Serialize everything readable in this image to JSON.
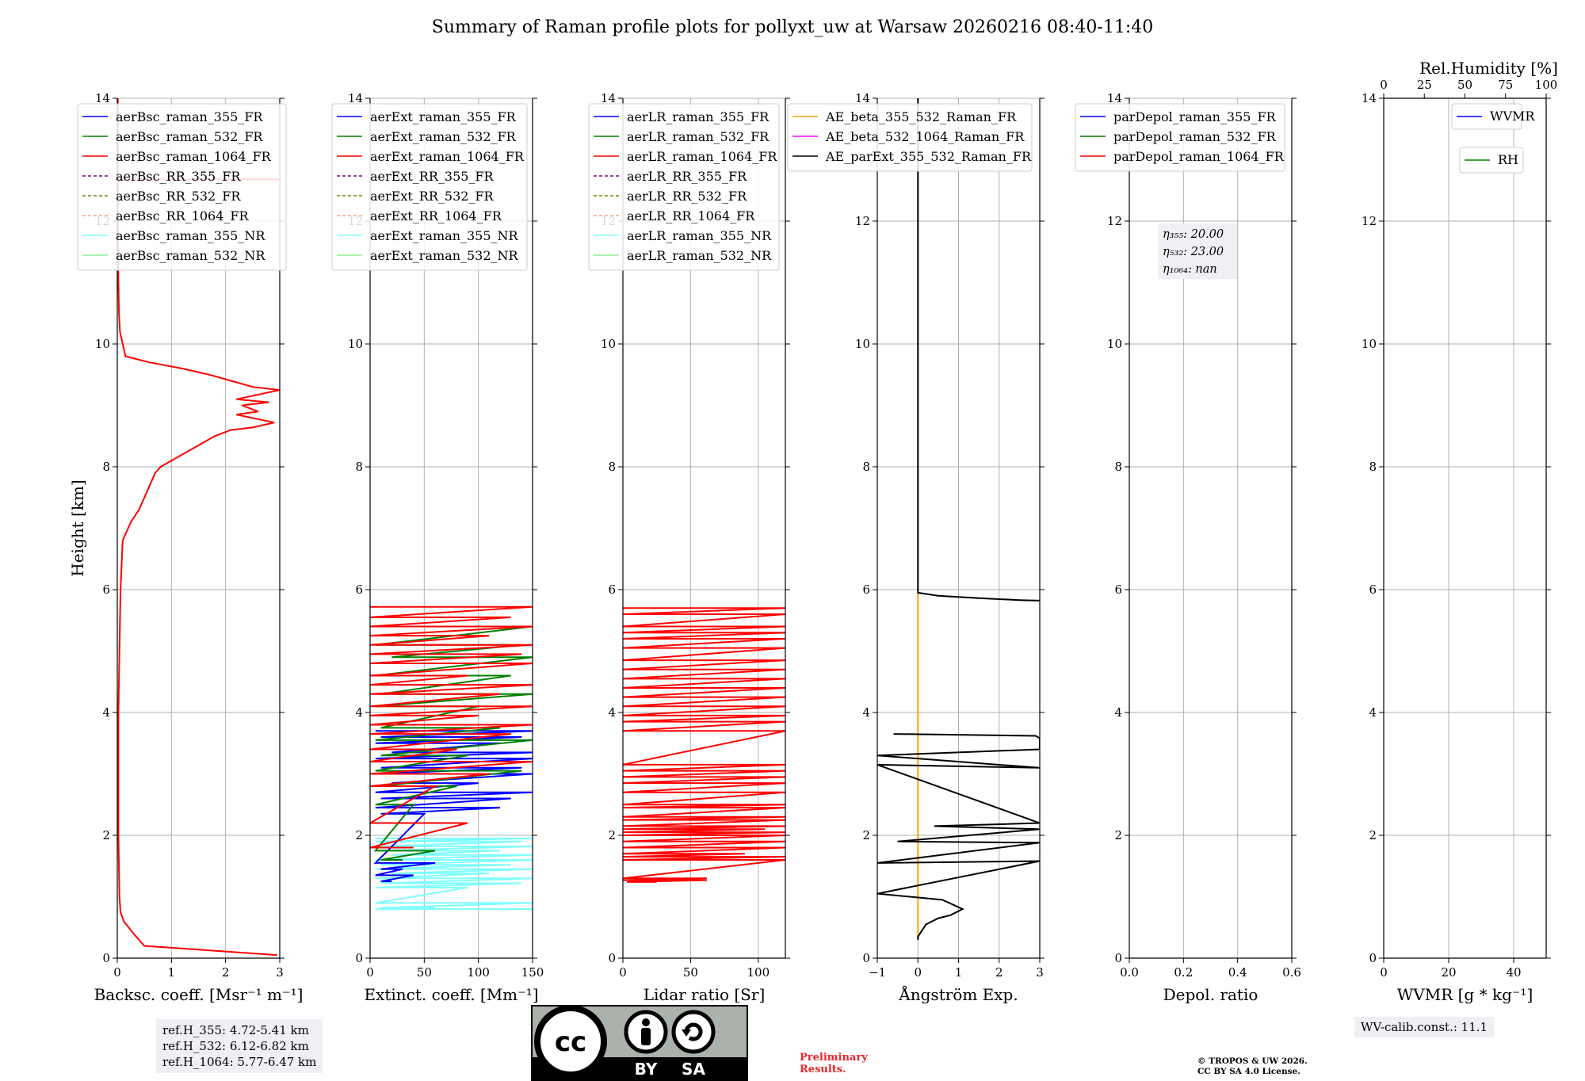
{
  "title": "Summary of Raman profile plots for pollyxt_uw at Warsaw 20260216 08:40-11:40",
  "colors": {
    "ch355": "#0000ff",
    "ch532": "#008000",
    "ch1064": "#ff0000",
    "rr355": "#800080",
    "rr532": "#808000",
    "rr1064": "#ffa07a",
    "nr355": "#7fffff",
    "nr532": "#90ee90",
    "ae_beta_355_532": "#ffa500",
    "ae_beta_532_1064": "#ff00ff",
    "ae_parext": "#000000",
    "grid": "#b0b0b0"
  },
  "chart_data": [
    {
      "id": "backscatter",
      "type": "line",
      "xlabel": "Backsc. coeff. [Msr⁻¹ m⁻¹]",
      "ylabel": "Height [km]",
      "xlim": [
        0,
        3
      ],
      "ylim": [
        0,
        14
      ],
      "xticks": [
        0,
        1,
        2,
        3
      ],
      "xticklabels": [
        "0",
        "1",
        "2",
        "3"
      ],
      "yticks": [
        0,
        2,
        4,
        6,
        8,
        10,
        12,
        14
      ],
      "legend": [
        "aerBsc_raman_355_FR",
        "aerBsc_raman_532_FR",
        "aerBsc_raman_1064_FR",
        "aerBsc_RR_355_FR",
        "aerBsc_RR_532_FR",
        "aerBsc_RR_1064_FR",
        "aerBsc_raman_355_NR",
        "aerBsc_raman_532_NR"
      ],
      "series": [
        {
          "name": "aerBsc_raman_1064_FR",
          "color": "#ff0000",
          "x": [
            2.95,
            0.5,
            0.3,
            0.12,
            0.06,
            0.04,
            0.02,
            0.02,
            0.02,
            0.04,
            0.06,
            0.1,
            0.25,
            0.4,
            0.5,
            0.6,
            0.7,
            0.8,
            1.0,
            1.2,
            1.4,
            1.6,
            1.8,
            2.1,
            2.3,
            2.5,
            2.9,
            2.2,
            2.6,
            2.3,
            2.8,
            2.2,
            3.0,
            2.5,
            2.1,
            1.7,
            1.2,
            0.6,
            0.15,
            0.05,
            0.03,
            0.02,
            0.01,
            0.01,
            0.01,
            0.01
          ],
          "y": [
            0.05,
            0.2,
            0.4,
            0.6,
            0.75,
            1.0,
            2.0,
            3.0,
            4.0,
            5.0,
            6.0,
            6.8,
            7.1,
            7.3,
            7.5,
            7.7,
            7.9,
            8.0,
            8.1,
            8.2,
            8.3,
            8.4,
            8.5,
            8.6,
            8.62,
            8.64,
            8.72,
            8.85,
            8.9,
            9.0,
            9.05,
            9.1,
            9.25,
            9.3,
            9.4,
            9.5,
            9.6,
            9.7,
            9.8,
            10.2,
            10.5,
            11.0,
            12.0,
            12.5,
            13.5,
            14.0
          ]
        },
        {
          "name": "aerBsc_raman_1064_FR_top",
          "color": "#ff0000",
          "x": [
            0.0,
            3.0
          ],
          "y": [
            12.68,
            12.68
          ]
        }
      ]
    },
    {
      "id": "extinction",
      "type": "line",
      "xlabel": "Extinct. coeff. [Mm⁻¹]",
      "ylabel": "",
      "xlim": [
        0,
        150
      ],
      "ylim": [
        0,
        14
      ],
      "xticks": [
        0,
        50,
        100,
        150
      ],
      "xticklabels": [
        "0",
        "50",
        "100",
        "150"
      ],
      "yticks": [
        0,
        2,
        4,
        6,
        8,
        10,
        12,
        14
      ],
      "legend": [
        "aerExt_raman_355_FR",
        "aerExt_raman_532_FR",
        "aerExt_raman_1064_FR",
        "aerExt_RR_355_FR",
        "aerExt_RR_532_FR",
        "aerExt_RR_1064_FR",
        "aerExt_raman_355_NR",
        "aerExt_raman_532_NR"
      ],
      "series": [
        {
          "name": "aerExt_raman_355_NR",
          "color": "#7fffff",
          "x": [
            5,
            150,
            5,
            140,
            10,
            150,
            5,
            120,
            20,
            150,
            5,
            150,
            10,
            130,
            5,
            150,
            20,
            110,
            5,
            150,
            10,
            140,
            5,
            90,
            5,
            150,
            10,
            60,
            5,
            150
          ],
          "y": [
            1.95,
            1.95,
            1.9,
            1.9,
            1.82,
            1.82,
            1.75,
            1.75,
            1.68,
            1.68,
            1.6,
            1.6,
            1.52,
            1.52,
            1.45,
            1.45,
            1.38,
            1.38,
            1.3,
            1.3,
            1.22,
            1.22,
            1.15,
            1.15,
            0.9,
            0.9,
            0.82,
            0.82,
            0.8,
            0.8
          ]
        },
        {
          "name": "aerExt_raman_355_FR",
          "color": "#0000ff",
          "x": [
            5,
            150,
            10,
            140,
            5,
            120,
            20,
            150,
            5,
            150,
            10,
            140,
            5,
            150,
            20,
            100,
            5,
            150,
            10,
            130,
            5,
            120,
            10,
            50,
            5,
            60,
            10,
            30,
            5,
            40,
            10,
            20
          ],
          "y": [
            3.7,
            3.7,
            3.6,
            3.6,
            3.5,
            3.5,
            3.35,
            3.35,
            3.25,
            3.25,
            3.1,
            3.1,
            3.0,
            3.0,
            2.85,
            2.85,
            2.7,
            2.7,
            2.6,
            2.6,
            2.45,
            2.45,
            2.35,
            2.35,
            1.55,
            1.55,
            1.45,
            1.45,
            1.35,
            1.35,
            1.25,
            1.25
          ]
        },
        {
          "name": "aerExt_raman_532_FR",
          "color": "#008000",
          "x": [
            10,
            150,
            5,
            140,
            20,
            150,
            5,
            130,
            10,
            150,
            5,
            100,
            10,
            120,
            5,
            150,
            10,
            90,
            5,
            140,
            10,
            80,
            5,
            40,
            5,
            60,
            10,
            30
          ],
          "y": [
            5.4,
            5.4,
            5.1,
            5.1,
            4.9,
            4.9,
            4.6,
            4.6,
            4.3,
            4.3,
            4.1,
            4.1,
            3.75,
            3.75,
            3.55,
            3.55,
            3.3,
            3.3,
            3.05,
            3.05,
            2.8,
            2.8,
            2.5,
            2.5,
            1.75,
            1.75,
            1.6,
            1.6
          ]
        },
        {
          "name": "aerExt_raman_1064_FR",
          "color": "#ff0000",
          "x": [
            0,
            150,
            0,
            130,
            0,
            150,
            0,
            110,
            0,
            150,
            0,
            140,
            0,
            150,
            0,
            90,
            0,
            150,
            0,
            120,
            0,
            150,
            0,
            100,
            0,
            150,
            0,
            130,
            0,
            80,
            0,
            150,
            0,
            110,
            0,
            60,
            0,
            90,
            0,
            40
          ],
          "y": [
            5.72,
            5.72,
            5.55,
            5.55,
            5.4,
            5.4,
            5.25,
            5.25,
            5.1,
            5.1,
            4.95,
            4.95,
            4.8,
            4.8,
            4.6,
            4.6,
            4.45,
            4.45,
            4.3,
            4.3,
            4.1,
            4.1,
            3.95,
            3.95,
            3.8,
            3.8,
            3.65,
            3.65,
            3.4,
            3.4,
            3.2,
            3.2,
            3.0,
            3.0,
            2.8,
            2.8,
            2.2,
            2.2,
            1.8,
            1.8
          ]
        }
      ]
    },
    {
      "id": "lidar_ratio",
      "type": "line",
      "xlabel": "Lidar ratio [Sr]",
      "ylabel": "",
      "xlim": [
        0,
        120
      ],
      "ylim": [
        0,
        14
      ],
      "xticks": [
        0,
        50,
        100
      ],
      "xticklabels": [
        "0",
        "50",
        "100"
      ],
      "yticks": [
        0,
        2,
        4,
        6,
        8,
        10,
        12,
        14
      ],
      "legend": [
        "aerLR_raman_355_FR",
        "aerLR_raman_532_FR",
        "aerLR_raman_1064_FR",
        "aerLR_RR_355_FR",
        "aerLR_RR_532_FR",
        "aerLR_RR_1064_FR",
        "aerLR_raman_355_NR",
        "aerLR_raman_532_NR"
      ],
      "series": [
        {
          "name": "aerLR_raman_1064_FR",
          "color": "#ff0000",
          "x": [
            0,
            120,
            0,
            120,
            0,
            120,
            0,
            120,
            0,
            120,
            0,
            120,
            0,
            120,
            0,
            120,
            0,
            120,
            0,
            120,
            0,
            120,
            0,
            120,
            0,
            120,
            0,
            120,
            0,
            120,
            0,
            120,
            0,
            120,
            0,
            120,
            0,
            120,
            0,
            120,
            0,
            120,
            0,
            120,
            0,
            120,
            0,
            120,
            0,
            120,
            0,
            105,
            0,
            120,
            0,
            120,
            0,
            120,
            0,
            120,
            0,
            90,
            0,
            120,
            0,
            120,
            0,
            62,
            0,
            62,
            3,
            25
          ],
          "y": [
            5.7,
            5.7,
            5.6,
            5.6,
            5.4,
            5.4,
            5.3,
            5.3,
            5.2,
            5.2,
            5.05,
            5.05,
            4.85,
            4.85,
            4.7,
            4.7,
            4.55,
            4.55,
            4.4,
            4.4,
            4.25,
            4.25,
            4.1,
            4.1,
            3.95,
            3.95,
            3.85,
            3.85,
            3.7,
            3.7,
            3.15,
            3.15,
            3.05,
            3.05,
            2.95,
            2.95,
            2.85,
            2.85,
            2.7,
            2.7,
            2.5,
            2.5,
            2.45,
            2.45,
            2.3,
            2.3,
            2.25,
            2.25,
            2.15,
            2.15,
            2.1,
            2.1,
            2.05,
            2.05,
            2.0,
            2.0,
            1.9,
            1.9,
            1.8,
            1.8,
            1.7,
            1.7,
            1.65,
            1.65,
            1.6,
            1.6,
            1.3,
            1.3,
            1.27,
            1.27,
            1.24,
            1.24
          ]
        }
      ]
    },
    {
      "id": "angstrom",
      "type": "line",
      "xlabel": "Ångström Exp.",
      "ylabel": "",
      "xlim": [
        -1,
        3
      ],
      "ylim": [
        0,
        14
      ],
      "xticks": [
        -1,
        0,
        1,
        2,
        3
      ],
      "xticklabels": [
        "−1",
        "0",
        "1",
        "2",
        "3"
      ],
      "yticks": [
        0,
        2,
        4,
        6,
        8,
        10,
        12,
        14
      ],
      "legend": [
        "AE_beta_355_532_Raman_FR",
        "AE_beta_532_1064_Raman_FR",
        "AE_parExt_355_532_Raman_FR"
      ],
      "series": [
        {
          "name": "AE_beta_355_532_Raman_FR",
          "color": "#ffa500",
          "x": [
            0,
            0
          ],
          "y": [
            0.3,
            5.95
          ]
        },
        {
          "name": "AE_parExt_355_532_Raman_FR",
          "color": "#000000",
          "x": [
            0,
            0,
            0.5,
            1.5,
            2.5,
            3.0
          ],
          "y": [
            14.0,
            5.95,
            5.9,
            5.86,
            5.83,
            5.82
          ]
        },
        {
          "name": "AE_parExt_355_532_Raman_FR_lower",
          "color": "#000000",
          "x": [
            -0.6,
            2.9,
            3.0,
            3.0,
            -1.0,
            3.0,
            -1.0,
            3.0,
            0.4,
            3.0,
            -0.5,
            3.0,
            -1.0,
            3.0,
            -1.0,
            0.6,
            1.1,
            0.8,
            0.5,
            0.2,
            0.1,
            0.0,
            0.0
          ],
          "y": [
            3.65,
            3.62,
            3.58,
            3.4,
            3.3,
            3.1,
            3.15,
            2.2,
            2.15,
            2.1,
            1.9,
            1.88,
            1.55,
            1.58,
            1.05,
            0.95,
            0.8,
            0.7,
            0.65,
            0.55,
            0.45,
            0.35,
            0.3
          ]
        }
      ]
    },
    {
      "id": "depol",
      "type": "line",
      "xlabel": "Depol. ratio",
      "ylabel": "",
      "xlim": [
        0.0,
        0.6
      ],
      "ylim": [
        0,
        14
      ],
      "xticks": [
        0.0,
        0.2,
        0.4,
        0.6
      ],
      "xticklabels": [
        "0.0",
        "0.2",
        "0.4",
        "0.6"
      ],
      "yticks": [
        0,
        2,
        4,
        6,
        8,
        10,
        12,
        14
      ],
      "legend": [
        "parDepol_raman_355_FR",
        "parDepol_raman_532_FR",
        "parDepol_raman_1064_FR"
      ],
      "annotations": [
        "η₃₅₅: 20.00",
        "η₅₃₂: 23.00",
        "η₁₀₆₄: nan"
      ],
      "series": []
    },
    {
      "id": "wvmr",
      "type": "line",
      "xlabel": "WVMR [g * kg⁻¹]",
      "ylabel": "",
      "xlim": [
        0,
        50
      ],
      "ylim": [
        0,
        14
      ],
      "xticks": [
        0,
        20,
        40
      ],
      "xticklabels": [
        "0",
        "20",
        "40"
      ],
      "yticks": [
        0,
        2,
        4,
        6,
        8,
        10,
        12,
        14
      ],
      "x2label": "Rel.Humidity [%]",
      "x2lim": [
        0,
        100
      ],
      "x2ticks": [
        0,
        25,
        50,
        75,
        100
      ],
      "x2ticklabels": [
        "0",
        "25",
        "50",
        "75",
        "100"
      ],
      "legend": [
        "WVMR",
        "RH"
      ],
      "series": []
    }
  ],
  "legend_colors": {
    "b8": [
      "#0000ff",
      "#008000",
      "#ff0000",
      "#800080",
      "#808000",
      "#ffa07a",
      "#7fffff",
      "#90ee90"
    ],
    "b8_dashed": [
      false,
      false,
      false,
      true,
      true,
      true,
      false,
      false
    ],
    "ae": [
      "#ffa500",
      "#ff00ff",
      "#000000"
    ],
    "dep": [
      "#0000ff",
      "#008000",
      "#ff0000"
    ],
    "wv": [
      "#0000ff",
      "#008000"
    ]
  },
  "ref_heights": [
    "ref.H_355: 4.72-5.41 km",
    "ref.H_532: 6.12-6.82 km",
    "ref.H_1064: 5.77-6.47 km"
  ],
  "wv_calib": "WV-calib.const.: 11.1",
  "preliminary": [
    "Preliminary",
    "Results."
  ],
  "copyright": [
    "© TROPOS & UW 2026.",
    "CC BY SA 4.0 License."
  ],
  "license_badge": {
    "cc": "cc",
    "by": "BY",
    "sa": "SA"
  }
}
